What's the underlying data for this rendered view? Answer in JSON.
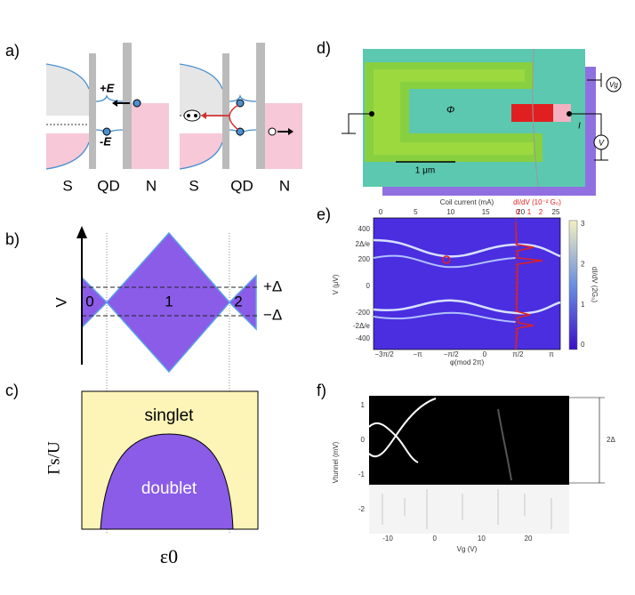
{
  "panels": {
    "a": {
      "label": "a)",
      "left": {
        "s": "S",
        "qd": "QD",
        "n": "N",
        "plus_e": "+E",
        "minus_e": "-E"
      },
      "right": {
        "s": "S",
        "qd": "QD",
        "n": "N"
      }
    },
    "b": {
      "label": "b)",
      "axis": "V",
      "regions": [
        "0",
        "1",
        "2"
      ],
      "plus_delta": "+Δ",
      "minus_delta": "−Δ"
    },
    "c": {
      "label": "c)",
      "y_axis": "Γs/U",
      "x_axis": "ε0",
      "upper": "singlet",
      "lower": "doublet"
    },
    "d": {
      "label": "d)",
      "flux": "Φ",
      "scale_bar": "1 μm",
      "current": "I",
      "gate": "Vg",
      "voltmeter": "V"
    },
    "e": {
      "label": "e)",
      "top_axis": "Coil current (mA)",
      "top_ticks": [
        "0",
        "5",
        "10",
        "15",
        "20",
        "25"
      ],
      "red_axis": "dI/dV (10⁻² G₀)",
      "red_ticks": [
        "0",
        "1",
        "2"
      ],
      "y_axis": "V (μV)",
      "y_ticks": [
        "400",
        "2Δ/e",
        "200",
        "0",
        "-200",
        "-2Δ/e",
        "-400"
      ],
      "x_axis": "φ(mod 2π)",
      "x_ticks": [
        "−3π/2",
        "−π",
        "−π/2",
        "0",
        "π/2",
        "π"
      ],
      "colorbar_label": "dI/dV (2G₀)",
      "colorbar_ticks": [
        "0",
        "1",
        "2",
        "3"
      ]
    },
    "f": {
      "label": "f)",
      "y_axis": "Vtunnel (mV)",
      "y_ticks": [
        "1",
        "0",
        "-1",
        "-2"
      ],
      "x_axis": "Vg (V)",
      "x_ticks": [
        "-10",
        "0",
        "10",
        "20"
      ],
      "gap": "2Δ"
    }
  }
}
